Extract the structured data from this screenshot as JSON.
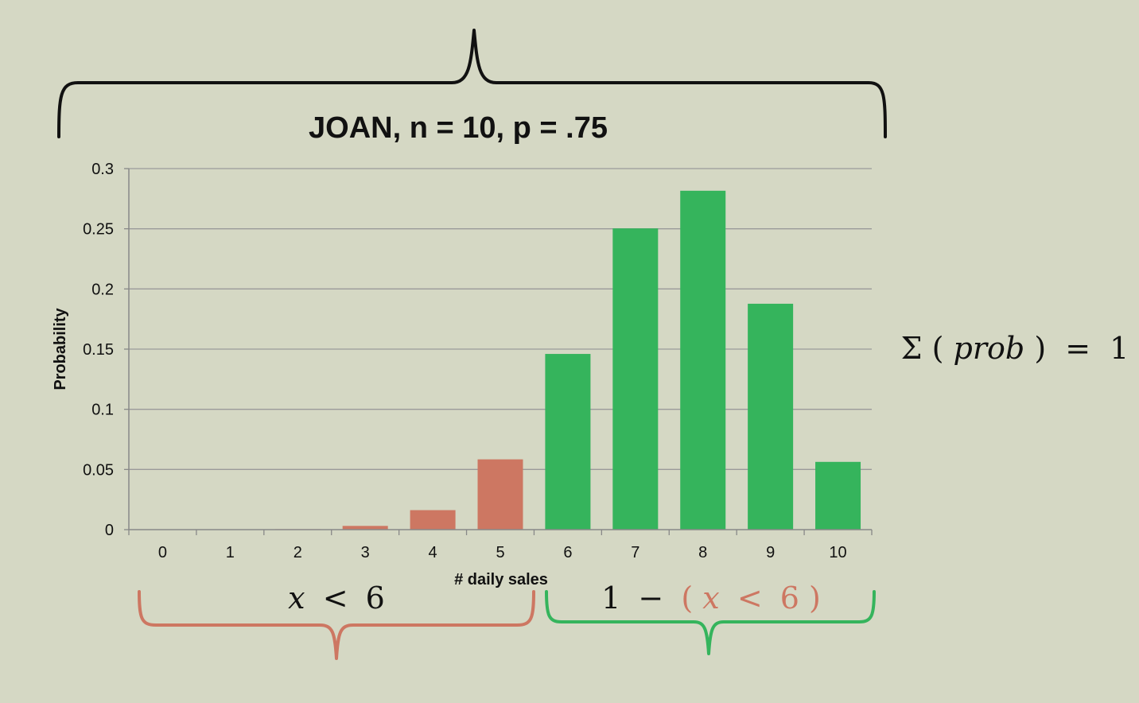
{
  "chart_data": {
    "type": "bar",
    "title": "JOAN, n = 10, p = .75",
    "xlabel": "# daily sales",
    "ylabel": "Probability",
    "ylim": [
      0,
      0.3
    ],
    "yticks": [
      "0",
      "0.05",
      "0.1",
      "0.15",
      "0.2",
      "0.25",
      "0.3"
    ],
    "categories": [
      "0",
      "1",
      "2",
      "3",
      "4",
      "5",
      "6",
      "7",
      "8",
      "9",
      "10"
    ],
    "values": [
      0.0,
      0.0,
      0.0004,
      0.0031,
      0.0162,
      0.0584,
      0.146,
      0.2503,
      0.2816,
      0.1877,
      0.0563
    ],
    "grid": true,
    "highlight_split": 6,
    "colors": {
      "below": "#cd7762",
      "above": "#35b45c",
      "grid": "#9a9a9a",
      "axis": "#888888",
      "text": "#111111"
    }
  },
  "annotations": {
    "left_brace": {
      "var": "x",
      "op": "<",
      "num": "6"
    },
    "right_brace": {
      "one": "1",
      "minus": "−",
      "open": "(",
      "var": "x",
      "op": "<",
      "num": "6",
      "close": ")"
    },
    "sum": {
      "sigma": "Σ",
      "open": "(",
      "word": "prob",
      "close": ")",
      "eq": "=",
      "one": "1"
    }
  }
}
